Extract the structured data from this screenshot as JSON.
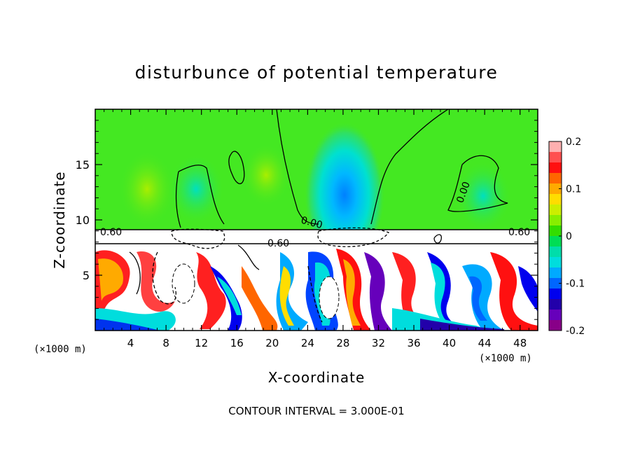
{
  "chart_data": {
    "type": "heatmap",
    "title": "disturbunce of potential temperature",
    "xlabel": "X-coordinate",
    "ylabel": "Z-coordinate",
    "x_unit_left": "(×1000 m)",
    "x_unit_right": "(×1000 m)",
    "footer": "CONTOUR INTERVAL = 3.000E-01",
    "xlim": [
      0,
      50
    ],
    "ylim": [
      0,
      20
    ],
    "x_ticks": [
      "4",
      "8",
      "12",
      "16",
      "20",
      "24",
      "28",
      "32",
      "36",
      "40",
      "44",
      "48"
    ],
    "x_tick_values": [
      4,
      8,
      12,
      16,
      20,
      24,
      28,
      32,
      36,
      40,
      44,
      48
    ],
    "y_ticks": [
      "5",
      "10",
      "15"
    ],
    "y_tick_values": [
      5,
      10,
      15
    ],
    "colorbar": {
      "range": [
        -0.2,
        0.2
      ],
      "labels": [
        "0.2",
        "0.1",
        "0",
        "-0.1",
        "-0.2"
      ],
      "label_values": [
        0.2,
        0.1,
        0,
        -0.1,
        -0.2
      ],
      "colors": [
        "#ffb0b0",
        "#ff5050",
        "#ff1010",
        "#ff6600",
        "#ffaa00",
        "#ffdd00",
        "#ccee00",
        "#88ee00",
        "#33dd00",
        "#00dd55",
        "#00ddaa",
        "#00dddd",
        "#00aaff",
        "#0066ff",
        "#0000ee",
        "#2200aa",
        "#6600bb",
        "#880088"
      ]
    },
    "contour_labels": [
      {
        "text": "0.60",
        "x": 1.8,
        "z": 8.9
      },
      {
        "text": "0.60",
        "x": 20.8,
        "z": 7.9
      },
      {
        "text": "0.60",
        "x": 48.0,
        "z": 8.9
      },
      {
        "text": "0.00",
        "x": 24.7,
        "z": 10.0
      },
      {
        "text": "0.00",
        "x": 43.2,
        "z": 12.0
      }
    ],
    "layer_top_z": 9.2,
    "layer_bottom_z": 7.9
  }
}
